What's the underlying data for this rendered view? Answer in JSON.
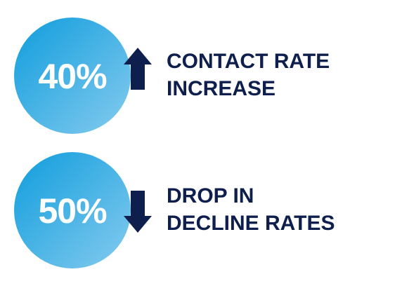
{
  "stats": [
    {
      "value": "40%",
      "direction": "up",
      "label": [
        "CONTACT RATE",
        "INCREASE"
      ]
    },
    {
      "value": "50%",
      "direction": "down",
      "label": [
        "DROP IN",
        "DECLINE RATES"
      ]
    }
  ]
}
